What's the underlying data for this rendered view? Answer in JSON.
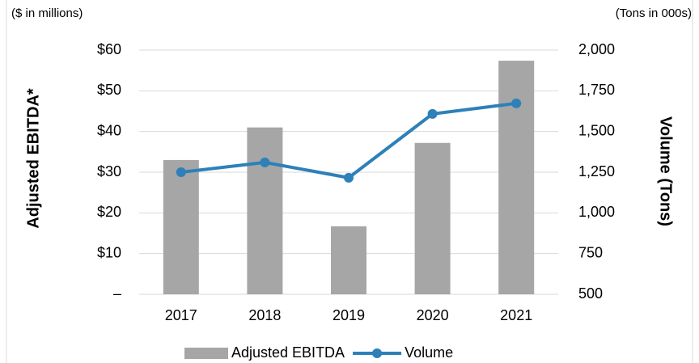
{
  "chart_data": {
    "type": "bar",
    "left_note": "($ in millions)",
    "right_note": "(Tons in 000s)",
    "ylabel": "Adjusted EBITDA*",
    "y2label": "Volume (Tons)",
    "categories": [
      "2017",
      "2018",
      "2019",
      "2020",
      "2021"
    ],
    "series": [
      {
        "name": "Adjusted EBITDA",
        "color": "#a6a6a6",
        "axis": "y",
        "values": [
          33.0,
          41.0,
          16.7,
          37.2,
          57.4
        ]
      },
      {
        "name": "Volume",
        "type": "line",
        "color": "#2e80b8",
        "axis": "y2",
        "values": [
          1250,
          1310,
          1216,
          1608,
          1673
        ]
      }
    ],
    "ylim": [
      0,
      60
    ],
    "yticks": [
      {
        "value": 0,
        "label": "–"
      },
      {
        "value": 10,
        "label": "$10"
      },
      {
        "value": 20,
        "label": "$20"
      },
      {
        "value": 30,
        "label": "$30"
      },
      {
        "value": 40,
        "label": "$40"
      },
      {
        "value": 50,
        "label": "$50"
      },
      {
        "value": 60,
        "label": "$60"
      }
    ],
    "y2lim": [
      500,
      2000
    ],
    "y2ticks": [
      500,
      750,
      {
        "value": 1000,
        "label": "1,000"
      },
      {
        "value": 1250,
        "label": "1,250"
      },
      {
        "value": 1500,
        "label": "1,500"
      },
      {
        "value": 1750,
        "label": "1,750"
      },
      {
        "value": 2000,
        "label": "2,000"
      }
    ],
    "grid": true,
    "legend": "bottom"
  }
}
